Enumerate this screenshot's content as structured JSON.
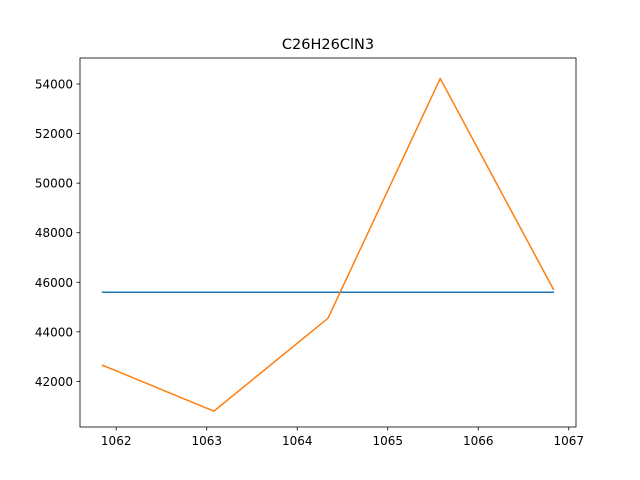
{
  "chart_data": {
    "type": "line",
    "title": "C26H26ClN3",
    "xlabel": "",
    "ylabel": "",
    "xlim": [
      1061.6,
      1067.08
    ],
    "ylim": [
      40160,
      55050
    ],
    "xticks": [
      1062,
      1063,
      1064,
      1065,
      1066,
      1067
    ],
    "yticks": [
      42000,
      44000,
      46000,
      48000,
      50000,
      52000,
      54000
    ],
    "grid": false,
    "legend": "none",
    "series": [
      {
        "color": "#1f77b4",
        "x": [
          1061.85,
          1066.83
        ],
        "y": [
          45600,
          45600
        ]
      },
      {
        "color": "#ff7f0e",
        "x": [
          1061.85,
          1063.08,
          1064.34,
          1065.58,
          1066.83
        ],
        "y": [
          42650,
          40800,
          44550,
          54220,
          45720
        ]
      }
    ]
  }
}
